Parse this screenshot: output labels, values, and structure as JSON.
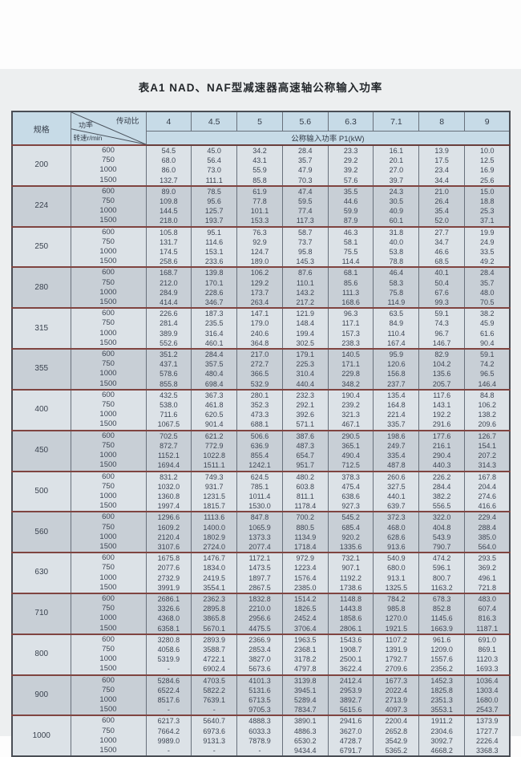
{
  "title": "表A1   NAD、NAF型减速器高速轴公称输入功率",
  "colors": {
    "page_bg": "#edeff0",
    "header_bg": "#c7dbe7",
    "group_light": "#dce2e7",
    "group_dark": "#c8cfd6",
    "group_separator": "#7f4440",
    "grid_line": "#68707b",
    "text": "#3d4553"
  },
  "table": {
    "corner": {
      "spec": "规格",
      "power": "功率",
      "ratio": "传动比",
      "speed": "转速r/min"
    },
    "ratios": [
      "4",
      "4.5",
      "5",
      "5.6",
      "6.3",
      "7.1",
      "8",
      "9"
    ],
    "power_header": "公称输入功率 P1(kW)",
    "speeds": [
      "600",
      "750",
      "1000",
      "1500"
    ],
    "groups": [
      {
        "spec": "200",
        "rows": [
          [
            "54.5",
            "45.0",
            "34.2",
            "28.4",
            "23.3",
            "16.1",
            "13.9",
            "10.0"
          ],
          [
            "68.0",
            "56.4",
            "43.1",
            "35.7",
            "29.2",
            "20.1",
            "17.5",
            "12.5"
          ],
          [
            "86.0",
            "73.0",
            "55.9",
            "47.9",
            "39.2",
            "27.0",
            "23.4",
            "16.9"
          ],
          [
            "132.7",
            "111.1",
            "85.8",
            "70.3",
            "57.6",
            "39.7",
            "34.4",
            "25.6"
          ]
        ]
      },
      {
        "spec": "224",
        "rows": [
          [
            "89.0",
            "78.5",
            "61.9",
            "47.4",
            "35.5",
            "24.3",
            "21.0",
            "15.0"
          ],
          [
            "109.8",
            "95.6",
            "77.8",
            "59.5",
            "44.6",
            "30.5",
            "26.4",
            "18.8"
          ],
          [
            "144.5",
            "125.7",
            "101.1",
            "77.4",
            "59.9",
            "40.9",
            "35.4",
            "25.3"
          ],
          [
            "218.0",
            "193.7",
            "153.3",
            "117.3",
            "87.9",
            "60.1",
            "52.0",
            "37.1"
          ]
        ]
      },
      {
        "spec": "250",
        "rows": [
          [
            "105.8",
            "95.1",
            "76.3",
            "58.7",
            "46.3",
            "31.8",
            "27.7",
            "19.9"
          ],
          [
            "131.7",
            "114.6",
            "92.9",
            "73.7",
            "58.1",
            "40.0",
            "34.7",
            "24.9"
          ],
          [
            "174.5",
            "153.1",
            "124.7",
            "95.8",
            "75.5",
            "53.8",
            "46.6",
            "33.5"
          ],
          [
            "258.6",
            "233.6",
            "189.0",
            "145.3",
            "114.4",
            "78.8",
            "68.5",
            "49.2"
          ]
        ]
      },
      {
        "spec": "280",
        "rows": [
          [
            "168.7",
            "139.8",
            "106.2",
            "87.6",
            "68.1",
            "46.4",
            "40.1",
            "28.4"
          ],
          [
            "212.0",
            "170.1",
            "129.2",
            "110.1",
            "85.6",
            "58.3",
            "50.4",
            "35.7"
          ],
          [
            "284.9",
            "228.6",
            "173.7",
            "143.2",
            "111.3",
            "75.8",
            "67.6",
            "48.0"
          ],
          [
            "414.4",
            "346.7",
            "263.4",
            "217.2",
            "168.6",
            "114.9",
            "99.3",
            "70.5"
          ]
        ]
      },
      {
        "spec": "315",
        "rows": [
          [
            "226.6",
            "187.3",
            "147.1",
            "121.9",
            "96.3",
            "63.5",
            "59.1",
            "38.2"
          ],
          [
            "281.4",
            "235.5",
            "179.0",
            "148.4",
            "117.1",
            "84.9",
            "74.3",
            "45.9"
          ],
          [
            "389.9",
            "316.4",
            "240.6",
            "199.4",
            "157.3",
            "110.4",
            "96.7",
            "61.6"
          ],
          [
            "552.6",
            "460.1",
            "364.8",
            "302.5",
            "238.3",
            "167.4",
            "146.7",
            "90.4"
          ]
        ]
      },
      {
        "spec": "355",
        "rows": [
          [
            "351.2",
            "284.4",
            "217.0",
            "179.1",
            "140.5",
            "95.9",
            "82.9",
            "59.1"
          ],
          [
            "437.1",
            "357.5",
            "272.7",
            "225.3",
            "171.1",
            "120.6",
            "104.2",
            "74.2"
          ],
          [
            "578.6",
            "480.4",
            "366.5",
            "310.4",
            "229.8",
            "156.8",
            "135.6",
            "96.5"
          ],
          [
            "855.8",
            "698.4",
            "532.9",
            "440.4",
            "348.2",
            "237.7",
            "205.7",
            "146.4"
          ]
        ]
      },
      {
        "spec": "400",
        "rows": [
          [
            "432.5",
            "367.3",
            "280.1",
            "232.3",
            "190.4",
            "135.4",
            "117.6",
            "84.8"
          ],
          [
            "538.0",
            "461.8",
            "352.3",
            "292.1",
            "239.2",
            "164.8",
            "143.1",
            "106.2"
          ],
          [
            "711.6",
            "620.5",
            "473.3",
            "392.6",
            "321.3",
            "221.4",
            "192.2",
            "138.2"
          ],
          [
            "1067.5",
            "901.4",
            "688.1",
            "571.1",
            "467.1",
            "335.7",
            "291.6",
            "209.6"
          ]
        ]
      },
      {
        "spec": "450",
        "rows": [
          [
            "702.5",
            "621.2",
            "506.6",
            "387.6",
            "290.5",
            "198.6",
            "177.6",
            "126.7"
          ],
          [
            "872.7",
            "772.9",
            "636.9",
            "487.3",
            "365.1",
            "249.7",
            "216.1",
            "154.1"
          ],
          [
            "1152.1",
            "1022.8",
            "855.4",
            "654.7",
            "490.4",
            "335.4",
            "290.4",
            "207.2"
          ],
          [
            "1694.4",
            "1511.1",
            "1242.1",
            "951.7",
            "712.5",
            "487.8",
            "440.3",
            "314.3"
          ]
        ]
      },
      {
        "spec": "500",
        "rows": [
          [
            "831.2",
            "749.3",
            "624.5",
            "480.2",
            "378.3",
            "260.6",
            "226.2",
            "167.8"
          ],
          [
            "1032.0",
            "931.7",
            "785.1",
            "603.8",
            "475.4",
            "327.5",
            "284.4",
            "204.4"
          ],
          [
            "1360.8",
            "1231.5",
            "1011.4",
            "811.1",
            "638.6",
            "440.1",
            "382.2",
            "274.6"
          ],
          [
            "1997.4",
            "1815.7",
            "1530.0",
            "1178.4",
            "927.3",
            "639.7",
            "556.5",
            "416.6"
          ]
        ]
      },
      {
        "spec": "560",
        "rows": [
          [
            "1296.6",
            "1113.6",
            "847.8",
            "700.2",
            "545.2",
            "372.3",
            "322.0",
            "229.4"
          ],
          [
            "1609.2",
            "1400.0",
            "1065.9",
            "880.5",
            "685.4",
            "468.0",
            "404.8",
            "288.4"
          ],
          [
            "2120.4",
            "1802.9",
            "1373.3",
            "1134.9",
            "920.2",
            "628.6",
            "543.9",
            "385.0"
          ],
          [
            "3107.6",
            "2724.0",
            "2077.4",
            "1718.4",
            "1335.6",
            "913.6",
            "790.7",
            "564.0"
          ]
        ]
      },
      {
        "spec": "630",
        "rows": [
          [
            "1675.8",
            "1476.7",
            "1172.1",
            "972.9",
            "732.1",
            "540.9",
            "474.2",
            "293.5"
          ],
          [
            "2077.6",
            "1834.0",
            "1473.5",
            "1223.4",
            "907.1",
            "680.0",
            "596.1",
            "369.2"
          ],
          [
            "2732.9",
            "2419.5",
            "1897.7",
            "1576.4",
            "1192.2",
            "913.1",
            "800.7",
            "496.1"
          ],
          [
            "3991.9",
            "3554.1",
            "2867.5",
            "2385.0",
            "1738.6",
            "1325.5",
            "1163.2",
            "721.8"
          ]
        ]
      },
      {
        "spec": "710",
        "rows": [
          [
            "2686.1",
            "2362.3",
            "1832.8",
            "1514.2",
            "1148.8",
            "784.2",
            "678.3",
            "483.0"
          ],
          [
            "3326.6",
            "2895.8",
            "2210.0",
            "1826.5",
            "1443.8",
            "985.8",
            "852.8",
            "607.4"
          ],
          [
            "4368.0",
            "3865.8",
            "2956.6",
            "2452.4",
            "1858.6",
            "1270.0",
            "1145.6",
            "816.3"
          ],
          [
            "6358.1",
            "5670.1",
            "4475.5",
            "3706.4",
            "2806.1",
            "1921.5",
            "1663.9",
            "1187.1"
          ]
        ]
      },
      {
        "spec": "800",
        "rows": [
          [
            "3280.8",
            "2893.9",
            "2366.9",
            "1963.5",
            "1543.6",
            "1107.2",
            "961.6",
            "691.0"
          ],
          [
            "4058.6",
            "3588.7",
            "2853.4",
            "2368.1",
            "1908.7",
            "1391.9",
            "1209.0",
            "869.1"
          ],
          [
            "5319.9",
            "4722.1",
            "3827.0",
            "3178.2",
            "2500.1",
            "1792.7",
            "1557.6",
            "1120.3"
          ],
          [
            "-",
            "6902.4",
            "5673.6",
            "4797.8",
            "3622.4",
            "2709.6",
            "2356.2",
            "1693.3"
          ]
        ]
      },
      {
        "spec": "900",
        "rows": [
          [
            "5284.6",
            "4703.5",
            "4101.3",
            "3139.8",
            "2412.4",
            "1677.3",
            "1452.3",
            "1036.4"
          ],
          [
            "6522.4",
            "5822.2",
            "5131.6",
            "3945.1",
            "2953.9",
            "2022.4",
            "1825.8",
            "1303.4"
          ],
          [
            "8517.6",
            "7639.1",
            "6713.5",
            "5289.4",
            "3892.7",
            "2713.9",
            "2351.3",
            "1680.0"
          ],
          [
            "-",
            "-",
            "9705.3",
            "7834.7",
            "5615.6",
            "4097.3",
            "3553.1",
            "2543.7"
          ]
        ]
      },
      {
        "spec": "1000",
        "rows": [
          [
            "6217.3",
            "5640.7",
            "4888.3",
            "3890.1",
            "2941.6",
            "2200.4",
            "1911.2",
            "1373.9"
          ],
          [
            "7664.2",
            "6973.6",
            "6033.3",
            "4886.3",
            "3627.0",
            "2652.8",
            "2304.6",
            "1727.7"
          ],
          [
            "9989.0",
            "9131.3",
            "7878.9",
            "6530.2",
            "4728.7",
            "3542.9",
            "3092.7",
            "2226.4"
          ],
          [
            "-",
            "-",
            "-",
            "9434.4",
            "6791.7",
            "5365.2",
            "4668.2",
            "3368.3"
          ]
        ]
      }
    ]
  }
}
